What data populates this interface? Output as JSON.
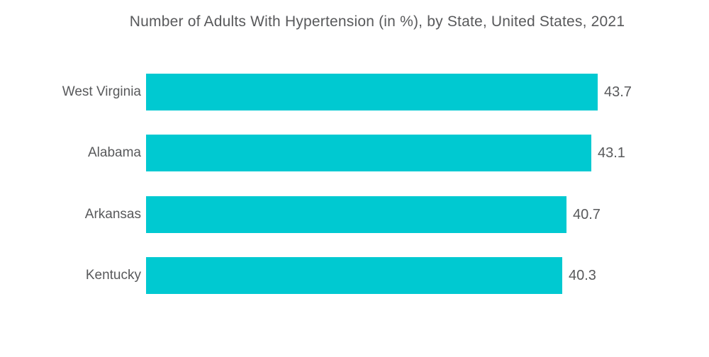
{
  "chart_data": {
    "type": "bar",
    "orientation": "horizontal",
    "title": "Number of Adults With Hypertension (in %), by State, United States, 2021",
    "categories": [
      "West Virginia",
      "Alabama",
      "Arkansas",
      "Kentucky"
    ],
    "values": [
      43.7,
      43.1,
      40.7,
      40.3
    ],
    "value_labels": [
      "43.7",
      "43.1",
      "40.7",
      "40.3"
    ],
    "xlabel": "",
    "ylabel": "",
    "xlim": [
      0,
      43.7
    ],
    "grid": false,
    "legend_position": "none",
    "bar_color": "#00C9D1",
    "text_color": "#58595B",
    "background_color": "#FFFFFF"
  }
}
